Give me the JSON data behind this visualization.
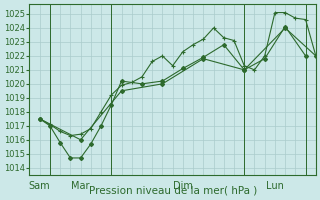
{
  "xlabel": "Pression niveau de la mer( hPa )",
  "bg_color": "#cce8e8",
  "grid_color": "#aacccc",
  "line_color": "#2d6a2d",
  "ylim": [
    1013.5,
    1025.7
  ],
  "yticks": [
    1014,
    1015,
    1016,
    1017,
    1018,
    1019,
    1020,
    1021,
    1022,
    1023,
    1024,
    1025
  ],
  "xlim": [
    0,
    14
  ],
  "xtick_positions": [
    0.5,
    2.5,
    7.5,
    12.0
  ],
  "xtick_labels": [
    "Sam",
    "Mar",
    "Dim",
    "Lun"
  ],
  "vline_positions": [
    1.0,
    4.0,
    10.5,
    13.5
  ],
  "series1_x": [
    0.5,
    1.0,
    1.5,
    2.0,
    2.5,
    3.0,
    3.5,
    4.0,
    4.5,
    5.0,
    5.5,
    6.0,
    6.5,
    7.0,
    7.5,
    8.0,
    8.5,
    9.0,
    9.5,
    10.0,
    10.5,
    11.0,
    11.5,
    12.0,
    12.5,
    13.0,
    13.5,
    14.0
  ],
  "series1_y": [
    1017.5,
    1017.1,
    1016.6,
    1016.3,
    1016.4,
    1016.8,
    1018.0,
    1019.2,
    1019.9,
    1020.1,
    1020.5,
    1021.6,
    1022.0,
    1021.3,
    1022.3,
    1022.8,
    1023.2,
    1024.0,
    1023.3,
    1023.1,
    1021.3,
    1021.0,
    1022.0,
    1025.1,
    1025.1,
    1024.7,
    1024.6,
    1022.0
  ],
  "series2_x": [
    0.5,
    1.0,
    1.5,
    2.0,
    2.5,
    3.0,
    3.5,
    4.0,
    4.5,
    5.5,
    6.5,
    7.5,
    8.5,
    9.5,
    10.5,
    11.5,
    12.5,
    13.5
  ],
  "series2_y": [
    1017.5,
    1017.0,
    1015.8,
    1014.7,
    1014.7,
    1015.7,
    1017.0,
    1018.5,
    1020.2,
    1020.0,
    1020.2,
    1021.1,
    1021.9,
    1022.8,
    1021.0,
    1021.8,
    1024.1,
    1022.0
  ],
  "series3_x": [
    0.5,
    2.5,
    4.5,
    6.5,
    8.5,
    10.5,
    12.5,
    14.0
  ],
  "series3_y": [
    1017.5,
    1016.0,
    1019.5,
    1020.0,
    1021.8,
    1021.0,
    1024.0,
    1022.0
  ]
}
